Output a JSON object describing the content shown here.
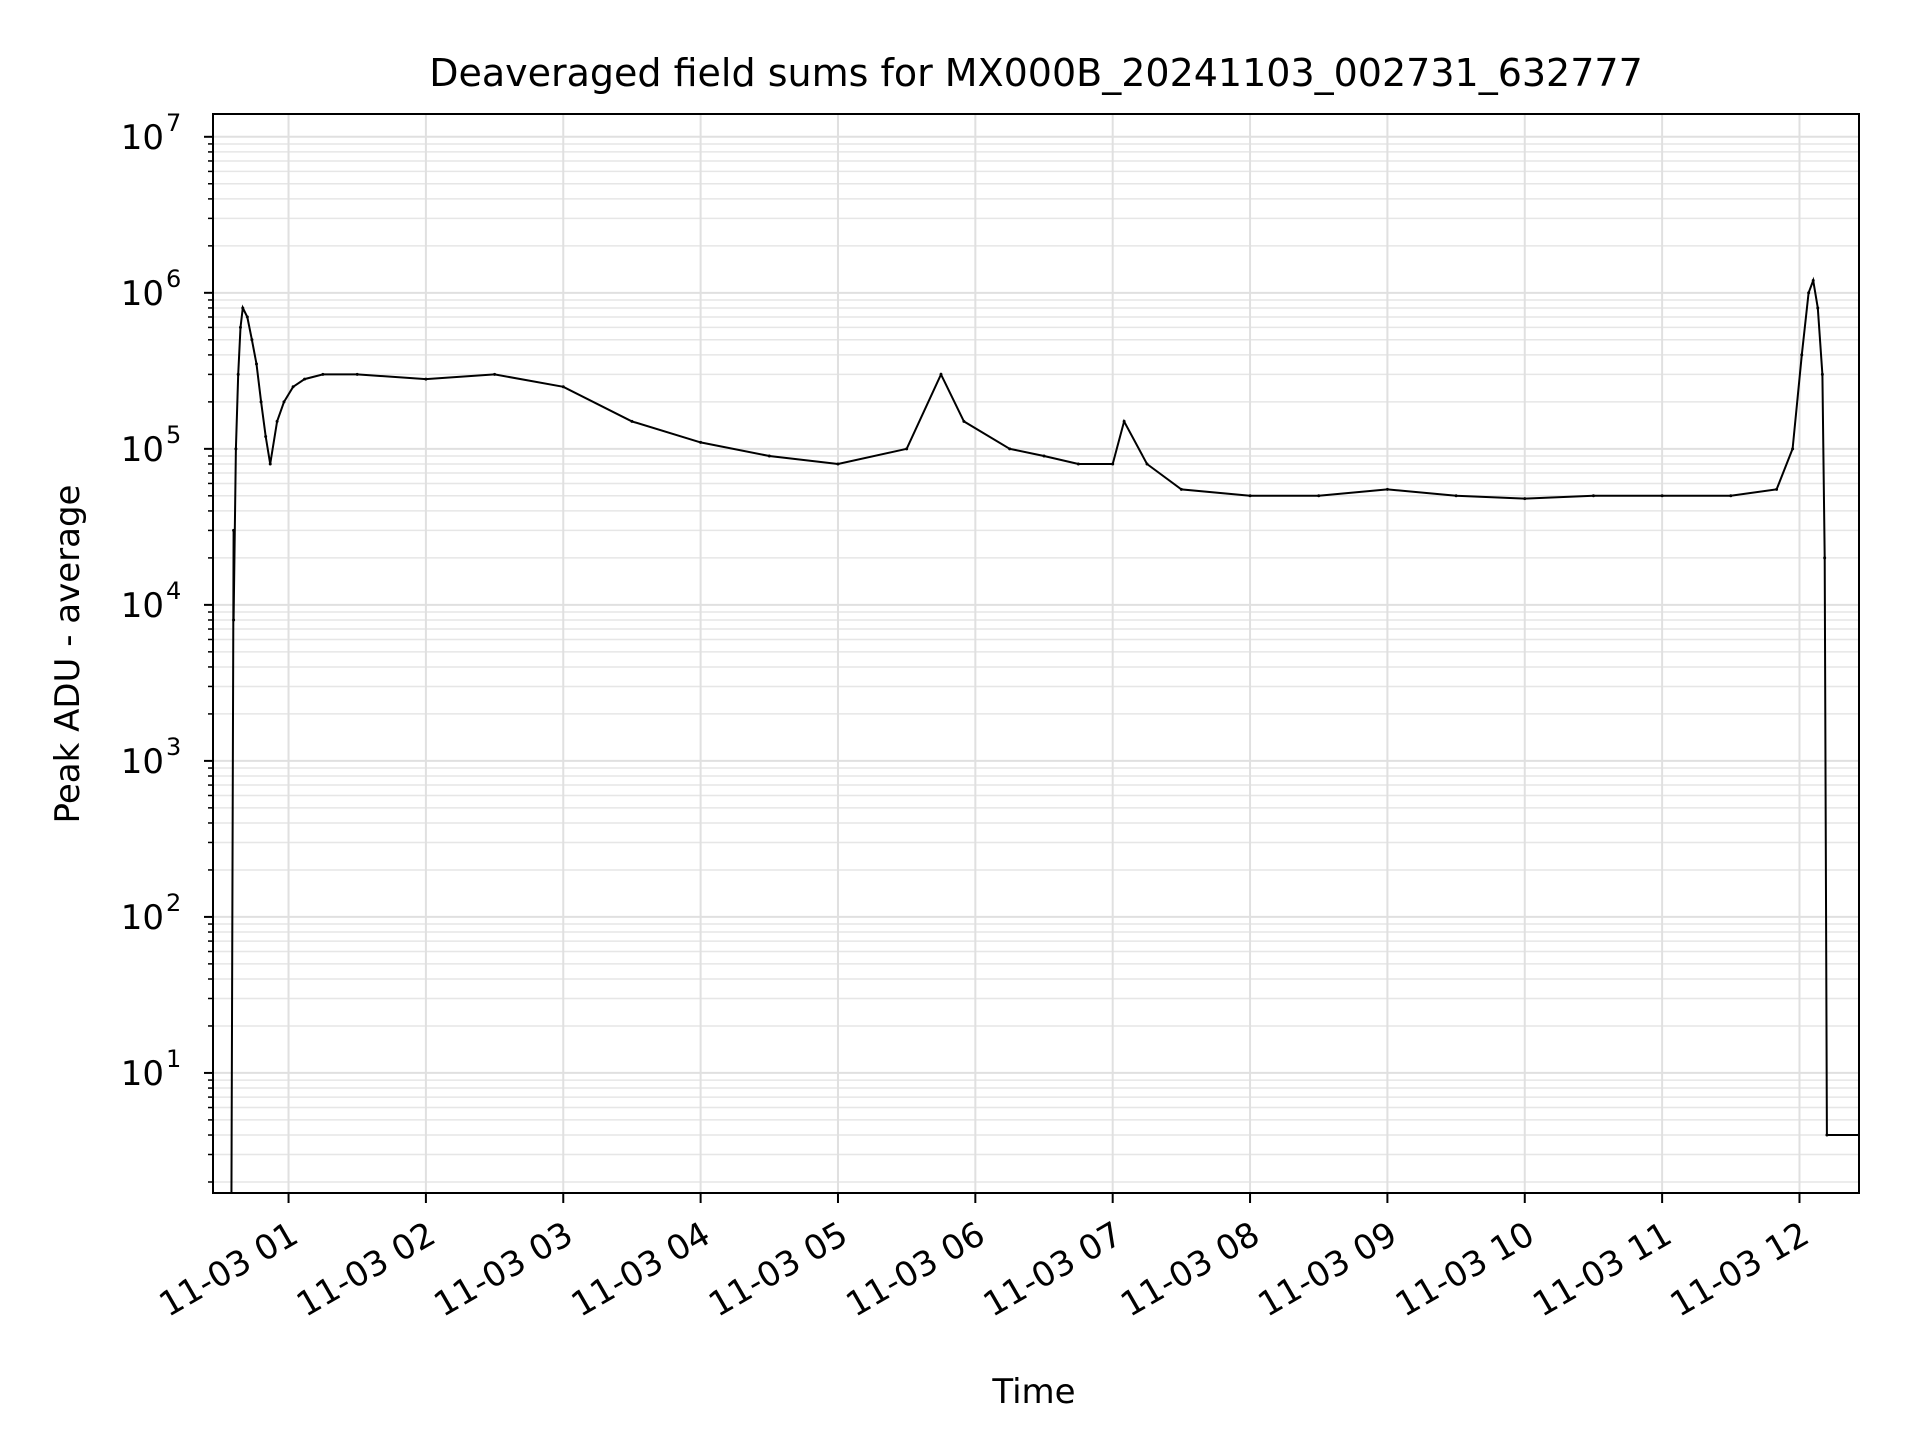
{
  "chart_data": {
    "type": "line",
    "title": "Deaveraged field sums for MX000B_20241103_002731_632777",
    "xlabel": "Time",
    "ylabel": "Peak ADU - average",
    "yscale": "log",
    "grid": true,
    "x_range": [
      "2024-11-03 00:27",
      "2024-11-03 12:26"
    ],
    "ylim": [
      1.7,
      14000000
    ],
    "x_tick_labels": [
      "11-03 01",
      "11-03 02",
      "11-03 03",
      "11-03 04",
      "11-03 05",
      "11-03 06",
      "11-03 07",
      "11-03 08",
      "11-03 09",
      "11-03 10",
      "11-03 11",
      "11-03 12"
    ],
    "x_ticks": [
      "2024-11-03 01:00",
      "2024-11-03 02:00",
      "2024-11-03 03:00",
      "2024-11-03 04:00",
      "2024-11-03 05:00",
      "2024-11-03 06:00",
      "2024-11-03 07:00",
      "2024-11-03 08:00",
      "2024-11-03 09:00",
      "2024-11-03 10:00",
      "2024-11-03 11:00",
      "2024-11-03 12:00"
    ],
    "y_ticks": [
      10,
      100,
      1000,
      10000,
      100000,
      1000000,
      10000000
    ],
    "y_tick_exponents": [
      "1",
      "2",
      "3",
      "4",
      "5",
      "6",
      "7"
    ],
    "y_tick_base": "10",
    "series": [
      {
        "color": "#000000",
        "x": [
          "2024-11-03 00:35",
          "2024-11-03 00:36",
          "2024-11-03 00:36",
          "2024-11-03 00:37",
          "2024-11-03 00:38",
          "2024-11-03 00:39",
          "2024-11-03 00:40",
          "2024-11-03 00:42",
          "2024-11-03 00:44",
          "2024-11-03 00:46",
          "2024-11-03 00:48",
          "2024-11-03 00:50",
          "2024-11-03 00:52",
          "2024-11-03 00:55",
          "2024-11-03 00:58",
          "2024-11-03 01:02",
          "2024-11-03 01:07",
          "2024-11-03 01:15",
          "2024-11-03 01:30",
          "2024-11-03 02:00",
          "2024-11-03 02:30",
          "2024-11-03 03:00",
          "2024-11-03 03:30",
          "2024-11-03 04:00",
          "2024-11-03 04:30",
          "2024-11-03 05:00",
          "2024-11-03 05:30",
          "2024-11-03 05:45",
          "2024-11-03 05:55",
          "2024-11-03 06:15",
          "2024-11-03 06:30",
          "2024-11-03 06:45",
          "2024-11-03 07:00",
          "2024-11-03 07:05",
          "2024-11-03 07:15",
          "2024-11-03 07:30",
          "2024-11-03 08:00",
          "2024-11-03 08:30",
          "2024-11-03 09:00",
          "2024-11-03 09:30",
          "2024-11-03 10:00",
          "2024-11-03 10:30",
          "2024-11-03 11:00",
          "2024-11-03 11:30",
          "2024-11-03 11:50",
          "2024-11-03 11:57",
          "2024-11-03 12:01",
          "2024-11-03 12:04",
          "2024-11-03 12:06",
          "2024-11-03 12:08",
          "2024-11-03 12:10",
          "2024-11-03 12:11",
          "2024-11-03 12:12",
          "2024-11-03 12:26"
        ],
        "y": [
          0,
          30000,
          8000,
          100000,
          300000,
          600000,
          800000,
          700000,
          500000,
          350000,
          200000,
          120000,
          80000,
          150000,
          200000,
          250000,
          280000,
          300000,
          300000,
          280000,
          300000,
          250000,
          150000,
          110000,
          90000,
          80000,
          100000,
          300000,
          150000,
          100000,
          90000,
          80000,
          80000,
          150000,
          80000,
          55000,
          50000,
          50000,
          55000,
          50000,
          48000,
          50000,
          50000,
          50000,
          55000,
          100000,
          400000,
          1000000,
          1200000,
          800000,
          300000,
          20000,
          4,
          4
        ]
      }
    ],
    "annotations": [],
    "legend": null
  }
}
